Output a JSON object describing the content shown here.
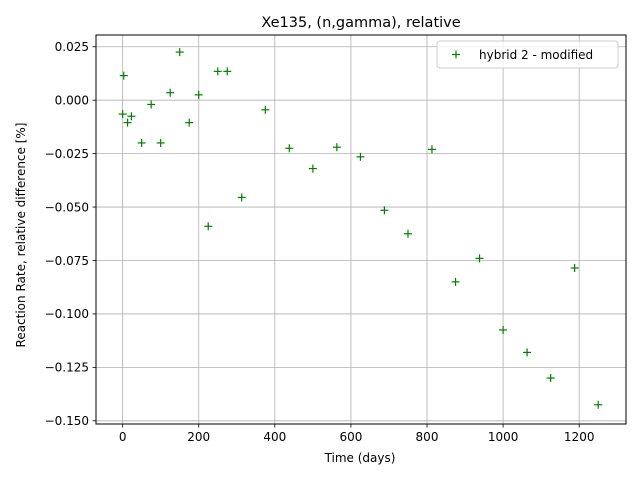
{
  "chart_data": {
    "type": "scatter",
    "title": "Xe135, (n,gamma), relative",
    "xlabel": "Time (days)",
    "ylabel": "Reaction Rate, relative difference [%]",
    "xlim": [
      -70,
      1323
    ],
    "ylim": [
      -0.1515,
      0.0305
    ],
    "xticks": [
      0,
      200,
      400,
      600,
      800,
      1000,
      1200
    ],
    "xtick_labels": [
      "0",
      "200",
      "400",
      "600",
      "800",
      "1000",
      "1200"
    ],
    "yticks": [
      0.025,
      0.0,
      -0.025,
      -0.05,
      -0.075,
      -0.1,
      -0.125,
      -0.15
    ],
    "ytick_labels": [
      "0.025",
      "0.000",
      "−0.025",
      "−0.050",
      "−0.075",
      "−0.100",
      "−0.125",
      "−0.150"
    ],
    "grid": true,
    "legend_position": "top-right",
    "marker": "+",
    "series": [
      {
        "name": "hybrid 2 - modified",
        "color": "#008000",
        "x": [
          0,
          3,
          13,
          23,
          50,
          75,
          100,
          125,
          150,
          175,
          200,
          225,
          250,
          275,
          313,
          375,
          438,
          500,
          563,
          625,
          688,
          750,
          813,
          875,
          938,
          1000,
          1063,
          1125,
          1188,
          1250
        ],
        "y": [
          -0.0065,
          0.0115,
          -0.0105,
          -0.0075,
          -0.02,
          -0.002,
          -0.02,
          0.0035,
          0.0225,
          -0.0105,
          0.0025,
          -0.059,
          0.0135,
          0.0135,
          -0.0455,
          -0.0045,
          -0.0225,
          -0.032,
          -0.022,
          -0.0265,
          -0.0515,
          -0.0625,
          -0.023,
          -0.085,
          -0.074,
          -0.1075,
          -0.118,
          -0.13,
          -0.0785,
          -0.1425
        ]
      }
    ]
  }
}
